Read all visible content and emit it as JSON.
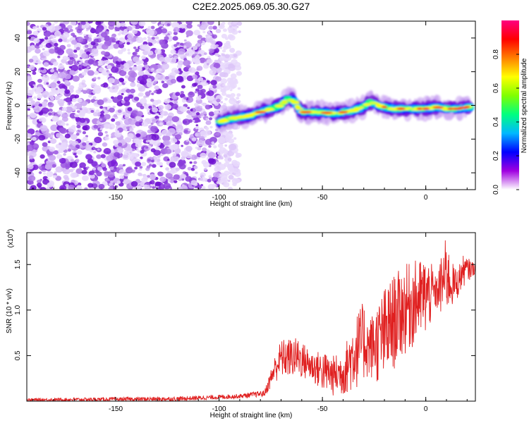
{
  "figure_title": "C2E2.2025.069.05.30.G27",
  "chart_data": [
    {
      "type": "heatmap",
      "xlabel": "Height of straight line (km)",
      "ylabel": "Frequency (Hz)",
      "xlim": [
        -193,
        24
      ],
      "ylim": [
        -50,
        50
      ],
      "xticks": [
        -150,
        -100,
        -50,
        0
      ],
      "yticks": [
        -40,
        -20,
        0,
        20,
        40
      ],
      "grid": false,
      "description_of_signal": "noise cloud for heights below -95 km; narrow high-amplitude track near 0 Hz from -100 km to +22 km",
      "track": [
        [
          -100,
          -10
        ],
        [
          -95,
          -8
        ],
        [
          -90,
          -7
        ],
        [
          -85,
          -6
        ],
        [
          -80,
          -4
        ],
        [
          -75,
          -2
        ],
        [
          -70,
          0
        ],
        [
          -67,
          4
        ],
        [
          -64,
          3
        ],
        [
          -60,
          -4
        ],
        [
          -55,
          -4
        ],
        [
          -50,
          -4
        ],
        [
          -45,
          -5
        ],
        [
          -40,
          -4
        ],
        [
          -35,
          -3
        ],
        [
          -30,
          -1
        ],
        [
          -27,
          2
        ],
        [
          -25,
          1
        ],
        [
          -20,
          -1
        ],
        [
          -15,
          -2
        ],
        [
          -10,
          -2
        ],
        [
          -5,
          -2
        ],
        [
          0,
          -2
        ],
        [
          5,
          -1
        ],
        [
          10,
          -2
        ],
        [
          15,
          -2
        ],
        [
          20,
          -1
        ],
        [
          22,
          -1
        ]
      ],
      "colorbar": {
        "label": "Normalized spectral amplitude",
        "range": [
          0,
          1
        ],
        "ticks": [
          "0.0",
          "0.2",
          "0.4",
          "0.6",
          "0.8"
        ],
        "tick_values": [
          0,
          0.2,
          0.4,
          0.6,
          0.8
        ],
        "colors": [
          "#ffffff",
          "#a000e0",
          "#0000ff",
          "#00b8ff",
          "#00ff80",
          "#80ff00",
          "#ffff00",
          "#ff8000",
          "#ff0000",
          "#ff0080"
        ]
      }
    },
    {
      "type": "line",
      "xlabel": "Height of straight line (km)",
      "ylabel": "SNR (10 * v/v)",
      "y_scale_note": "(x10",
      "y_scale_exp": "4",
      "y_scale_close": ")",
      "xlim": [
        -193,
        24
      ],
      "ylim": [
        0,
        1.85
      ],
      "xticks": [
        -150,
        -100,
        -50,
        0
      ],
      "yticks": [
        "0.5",
        "1.0",
        "1.5"
      ],
      "ytick_values": [
        0.5,
        1.0,
        1.5
      ],
      "line_color": "#e02020",
      "grid": false,
      "series_envelope": {
        "x": [
          -193,
          -120,
          -90,
          -78,
          -73,
          -70,
          -62,
          -55,
          -50,
          -45,
          -40,
          -35,
          -30,
          -28,
          -25,
          -20,
          -15,
          -10,
          -5,
          0,
          3,
          5,
          8,
          10,
          12,
          15,
          18,
          22,
          24
        ],
        "y_low": [
          0.0,
          0.0,
          0.03,
          0.05,
          0.2,
          0.25,
          0.25,
          0.2,
          0.1,
          0.05,
          0.05,
          0.1,
          0.2,
          0.25,
          0.2,
          0.15,
          0.35,
          0.5,
          0.6,
          0.7,
          0.85,
          1.0,
          0.9,
          0.95,
          1.0,
          1.1,
          1.25,
          1.35,
          1.4
        ],
        "y_high": [
          0.03,
          0.05,
          0.08,
          0.12,
          0.5,
          0.68,
          0.7,
          0.55,
          0.55,
          0.5,
          0.55,
          0.9,
          1.1,
          0.9,
          1.0,
          1.25,
          1.4,
          1.5,
          1.55,
          1.58,
          1.5,
          1.35,
          1.65,
          1.82,
          1.55,
          1.45,
          1.6,
          1.55,
          1.5
        ]
      }
    }
  ]
}
